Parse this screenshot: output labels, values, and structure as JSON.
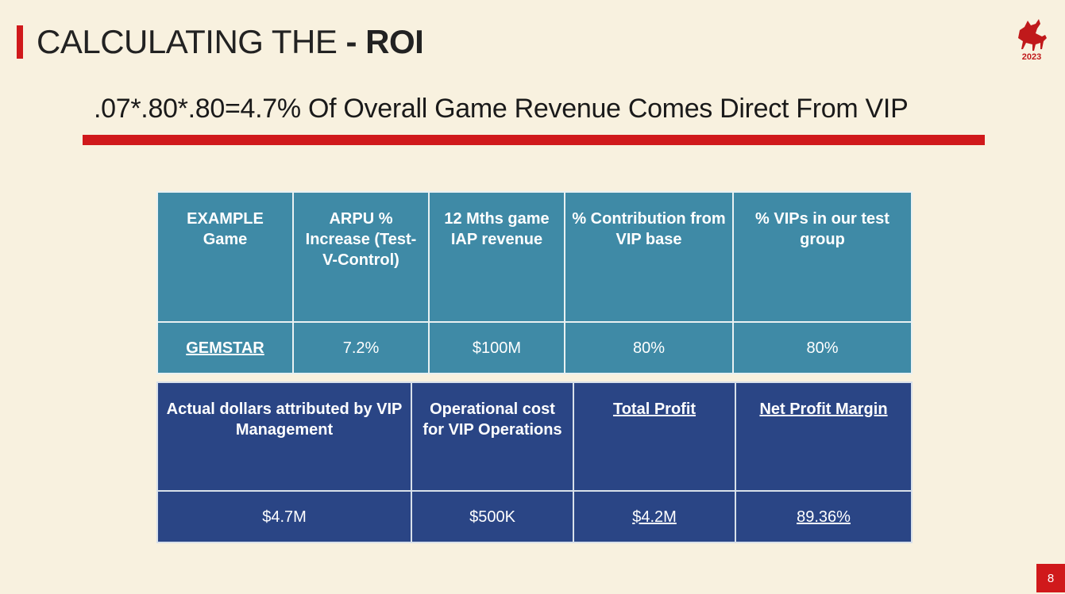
{
  "header": {
    "title_regular": "CALCULATING THE ",
    "title_bold": "- ROI",
    "logo_year": "2023"
  },
  "subtitle": ".07*.80*.80=4.7% Of Overall Game Revenue Comes Direct From VIP",
  "table1": {
    "headers": [
      "EXAMPLE Game",
      "ARPU % Increase (Test-V-Control)",
      "12 Mths game IAP  revenue",
      "% Contribution from VIP base",
      "% VIPs in our test group"
    ],
    "row": [
      "GEMSTAR",
      "7.2%",
      "$100M",
      "80%",
      "80%"
    ]
  },
  "table2": {
    "headers": [
      "Actual dollars attributed by VIP Management",
      "Operational cost for VIP Operations",
      "Total Profit",
      "Net Profit Margin"
    ],
    "row": [
      "$4.7M",
      "$500K",
      "$4.2M",
      "89.36%"
    ]
  },
  "footer": {
    "page_number": "8"
  },
  "colors": {
    "accent_red": "#d0191b",
    "teal": "#3f8aa6",
    "navy": "#2a4585",
    "background": "#f8f1df"
  }
}
